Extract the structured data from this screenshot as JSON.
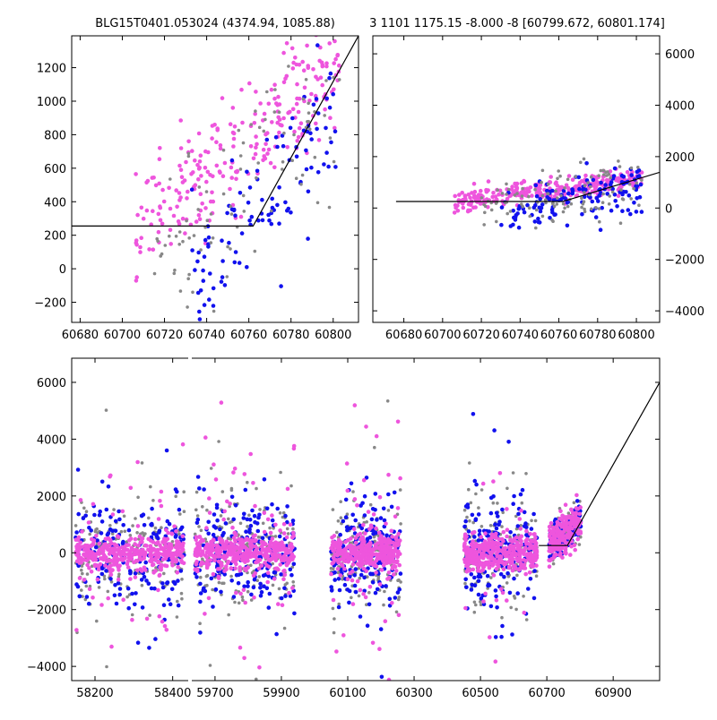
{
  "chart_data": [
    {
      "type": "scatter",
      "title": "BLG15T0401.053024 (4374.94, 1085.88)",
      "xlabel": "",
      "ylabel": "",
      "xlim": [
        60676,
        60812
      ],
      "ylim": [
        -320,
        1390
      ],
      "x_ticks": [
        60680,
        60700,
        60720,
        60740,
        60760,
        60780,
        60800
      ],
      "y_ticks": [
        -200,
        0,
        200,
        400,
        600,
        800,
        1000,
        1200
      ],
      "y_axis_side": "left",
      "grid": false,
      "series": [
        {
          "color": "#ee55dd",
          "cluster": {
            "x": [
              60706,
              60803
            ],
            "ybase": [
              200,
              1250
            ],
            "spread": 340,
            "n": 260
          }
        },
        {
          "color": "#1111ee",
          "cluster": {
            "x": [
              60733,
              60803
            ],
            "ybase": [
              -100,
              900
            ],
            "spread": 420,
            "n": 110
          }
        },
        {
          "color": "#888888",
          "cluster": {
            "x": [
              60715,
              60803
            ],
            "ybase": [
              -50,
              1000
            ],
            "spread": 450,
            "n": 90
          }
        }
      ],
      "model_line": [
        [
          60676,
          255
        ],
        [
          60762,
          255
        ],
        [
          60812,
          1390
        ]
      ]
    },
    {
      "type": "scatter",
      "title": "3 1101 1175.15 -8.000 -8 [60799.672, 60801.174]",
      "xlabel": "",
      "ylabel": "",
      "xlim": [
        60664,
        60812
      ],
      "ylim": [
        -4450,
        6700
      ],
      "x_ticks": [
        60680,
        60700,
        60720,
        60740,
        60760,
        60780,
        60800
      ],
      "y_ticks": [
        -4000,
        -2000,
        0,
        2000,
        4000,
        6000
      ],
      "y_axis_side": "right",
      "grid": false,
      "series": [
        {
          "color": "#ee55dd",
          "cluster": {
            "x": [
              60706,
              60803
            ],
            "ybase": [
              200,
              1150
            ],
            "spread": 420,
            "n": 320
          }
        },
        {
          "color": "#1111ee",
          "cluster": {
            "x": [
              60730,
              60803
            ],
            "ybase": [
              -200,
              900
            ],
            "spread": 1000,
            "n": 140
          }
        },
        {
          "color": "#888888",
          "cluster": {
            "x": [
              60720,
              60803
            ],
            "ybase": [
              -100,
              1000
            ],
            "spread": 1100,
            "n": 110
          }
        }
      ],
      "model_line": [
        [
          60676,
          255
        ],
        [
          60762,
          255
        ],
        [
          60812,
          1390
        ]
      ]
    },
    {
      "type": "scatter",
      "title": "",
      "xlabel": "",
      "ylabel": "",
      "ylim": [
        -4500,
        6850
      ],
      "x_ticks": [
        58200,
        58400,
        59700,
        59900,
        60100,
        60300,
        60500,
        60700,
        60900
      ],
      "y_ticks": [
        -4000,
        -2000,
        0,
        2000,
        4000,
        6000
      ],
      "y_axis_side": "left",
      "grid": false,
      "broken_x_axis": [
        {
          "xlim": [
            58140,
            58440
          ],
          "x_ticks": [
            58200,
            58400
          ]
        },
        {
          "xlim": [
            59630,
            61040
          ],
          "x_ticks": [
            59700,
            59900,
            60100,
            60300,
            60500,
            60700,
            60900
          ]
        }
      ],
      "seasons": [
        {
          "x": [
            58150,
            58430
          ],
          "n": 320
        },
        {
          "x": [
            59640,
            59940
          ],
          "n": 340
        },
        {
          "x": [
            60050,
            60260
          ],
          "n": 300
        },
        {
          "x": [
            60450,
            60670
          ],
          "n": 300
        },
        {
          "x": [
            60706,
            60803
          ],
          "n": 160
        }
      ],
      "series_colors": [
        "#888888",
        "#1111ee",
        "#ee55dd"
      ],
      "model_line": [
        [
          60676,
          255
        ],
        [
          60762,
          255
        ],
        [
          61040,
          6000
        ]
      ]
    }
  ]
}
